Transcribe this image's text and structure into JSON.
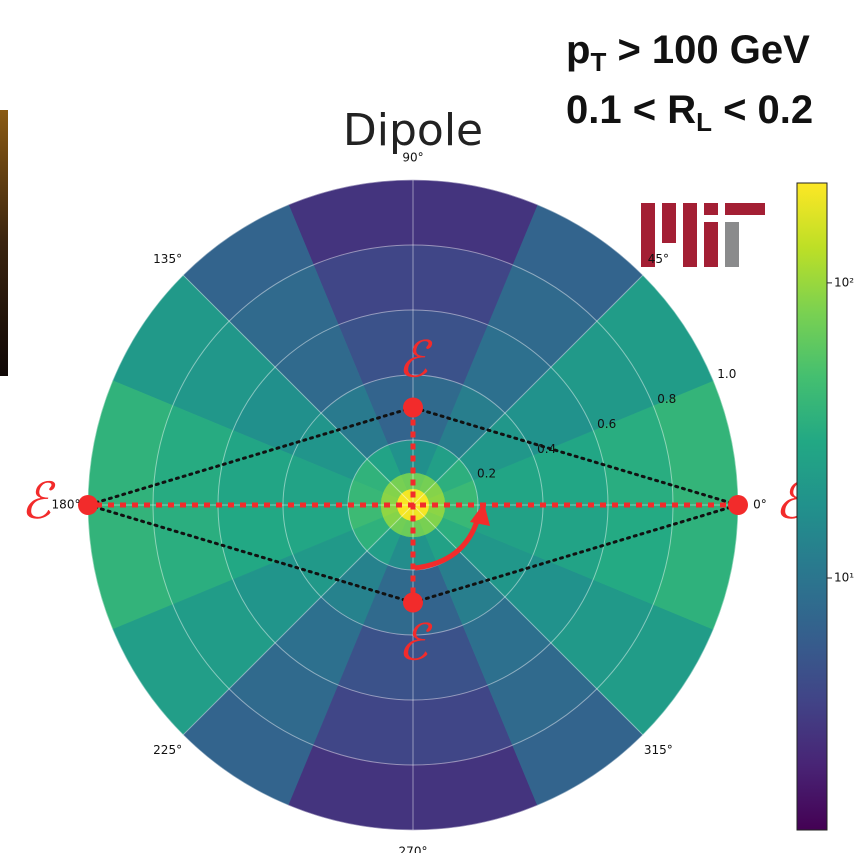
{
  "chart_data": {
    "type": "polar-heatmap",
    "title": "Dipole",
    "annotations": [
      {
        "main": "p",
        "sub": "T",
        "rest": " > 100 GeV"
      },
      {
        "main": "0.1 < R",
        "sub": "L",
        "rest": " < 0.2"
      }
    ],
    "r_edges": [
      0,
      0.05,
      0.1,
      0.2,
      0.4,
      0.6,
      0.8,
      1.0
    ],
    "theta_edges": [
      0,
      22.5,
      45,
      67.5,
      90,
      112.5,
      135,
      157.5,
      180,
      202.5,
      225,
      247.5,
      270,
      292.5,
      315,
      337.5,
      360
    ],
    "values": [
      [
        210,
        205,
        200,
        195,
        198,
        202,
        207,
        212,
        215,
        208,
        200,
        196,
        194,
        199,
        204,
        211
      ],
      [
        92,
        86,
        76,
        70,
        72,
        77,
        85,
        90,
        94,
        87,
        74,
        69,
        71,
        78,
        84,
        91
      ],
      [
        42,
        34,
        24,
        17,
        18,
        26,
        36,
        40,
        43,
        35,
        23,
        16,
        19,
        25,
        33,
        41
      ],
      [
        27,
        20,
        12,
        8,
        7,
        11,
        19,
        26,
        28,
        21,
        13,
        8,
        7,
        12,
        20,
        25
      ],
      [
        28,
        18,
        9,
        5,
        5,
        8,
        17,
        27,
        29,
        19,
        9,
        5,
        5,
        9,
        18,
        26
      ],
      [
        32,
        21,
        8,
        4,
        4,
        8,
        20,
        31,
        33,
        22,
        8,
        4,
        4,
        8,
        21,
        30
      ],
      [
        38,
        22,
        7,
        3,
        3,
        7,
        21,
        36,
        37,
        23,
        7,
        3,
        3,
        7,
        22,
        35
      ]
    ],
    "rlim": [
      0,
      1
    ],
    "rticks": [
      0.2,
      0.4,
      0.6,
      0.8,
      {
        "value": 1,
        "label": "1.0"
      }
    ],
    "thetaticks": [
      {
        "value": 0,
        "label": "0°"
      },
      {
        "value": 45,
        "label": "45°"
      },
      {
        "value": 90,
        "label": "90°"
      },
      {
        "value": 135,
        "label": "135°"
      },
      {
        "value": 180,
        "label": "180°"
      },
      {
        "value": 225,
        "label": "225°"
      },
      {
        "value": 270,
        "label": "270°"
      },
      {
        "value": 315,
        "label": "315°"
      }
    ],
    "grid": true,
    "colorbar": {
      "scale": "log",
      "colormap": "viridis",
      "clim": [
        1.4,
        218
      ],
      "ticks": [
        {
          "value": 10,
          "label": "10¹"
        },
        {
          "value": 100,
          "label": "10²"
        }
      ]
    },
    "points": {
      "labels": [
        "ℰ",
        "ℰ",
        "ℰ",
        "ℰ"
      ],
      "r": [
        1,
        0.3,
        1,
        0.3
      ],
      "theta": [
        0,
        90,
        180,
        270
      ],
      "color": "#f22b2b"
    }
  }
}
